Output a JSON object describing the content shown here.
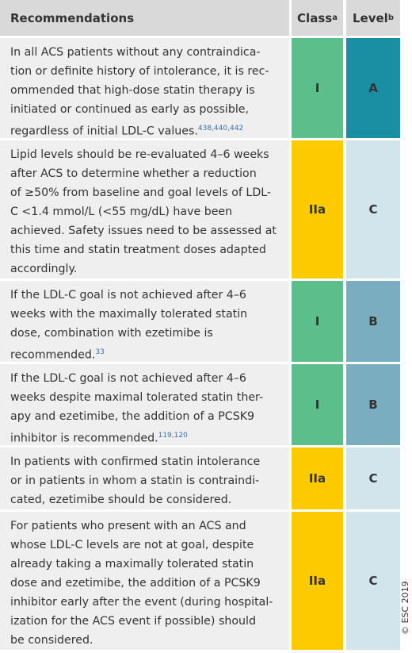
{
  "header": {
    "recommendations": "Recommendations",
    "class": "Class",
    "class_note": "a",
    "level": "Level",
    "level_note": "b"
  },
  "class_colors": {
    "I": "#5cbf8b",
    "IIa": "#fdca00"
  },
  "level_colors": {
    "A": "#1a8ea3",
    "B": "#7badc0",
    "C": "#d2e5ed"
  },
  "rows": [
    {
      "lines": [
        "In all ACS patients without any contraindica-",
        "tion or definite history of intolerance, it is rec-",
        "ommended that high-dose statin therapy is",
        "initiated or continued as early as possible,",
        "regardless of initial LDL-C values."
      ],
      "refs": "438,440,442",
      "class": "I",
      "level": "A"
    },
    {
      "lines": [
        "Lipid levels should be re-evaluated 4–6 weeks",
        "after ACS to determine whether a reduction",
        "of ≥50% from baseline and goal levels of LDL-",
        "C <1.4 mmol/L (<55 mg/dL) have been",
        "achieved. Safety issues need to be assessed at",
        "this time and statin treatment doses adapted",
        "accordingly."
      ],
      "class": "IIa",
      "level": "C"
    },
    {
      "lines": [
        "If the LDL-C goal is not achieved after 4–6",
        "weeks with the maximally tolerated statin",
        "dose, combination with ezetimibe is",
        "recommended."
      ],
      "refs": "33",
      "class": "I",
      "level": "B"
    },
    {
      "lines": [
        "If the LDL-C goal is not achieved after 4–6",
        "weeks despite maximal tolerated statin ther-",
        "apy and ezetimibe, the addition of a PCSK9",
        "inhibitor is recommended."
      ],
      "refs": "119,120",
      "class": "I",
      "level": "B"
    },
    {
      "lines": [
        "In patients with confirmed statin intolerance",
        "or in patients in whom a statin is contraindi-",
        "cated, ezetimibe should be considered."
      ],
      "class": "IIa",
      "level": "C"
    },
    {
      "lines": [
        "For patients who present with an ACS and",
        "whose LDL-C levels are not at goal, despite",
        "already taking a maximally tolerated statin",
        "dose and ezetimibe, the addition of a PCSK9",
        "inhibitor early after the event (during hospital-",
        "ization for the ACS event if possible) should",
        "be considered."
      ],
      "class": "IIa",
      "level": "C"
    }
  ],
  "copyright": "© ESC 2019"
}
